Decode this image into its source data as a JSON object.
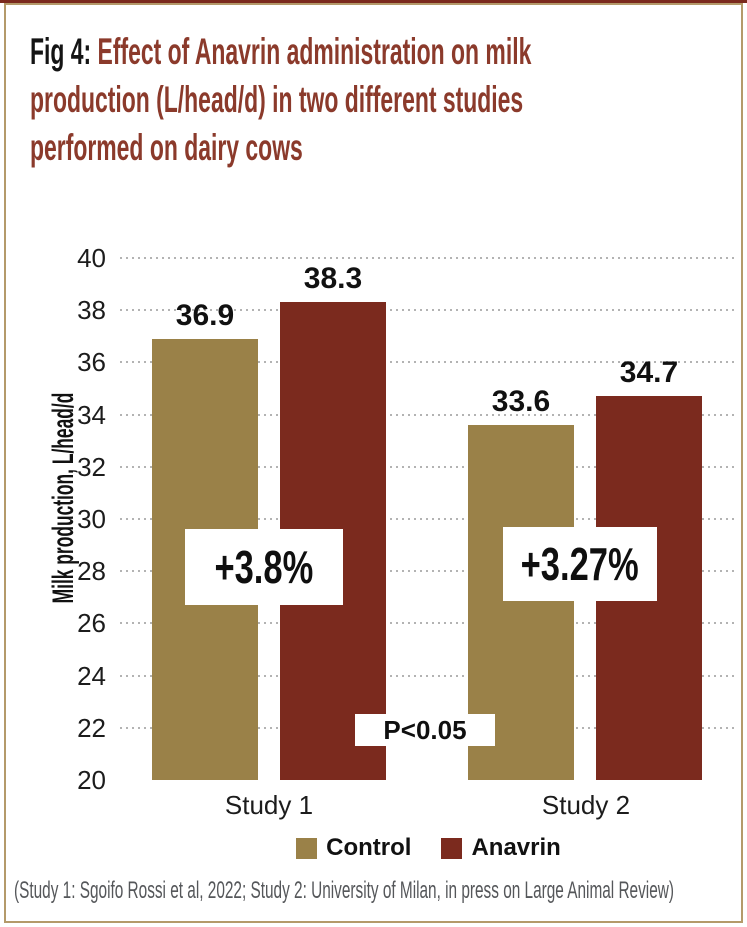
{
  "frame": {
    "accent_top_color": "#7b2a1e",
    "border_color": "#b49a6a",
    "background": "#ffffff"
  },
  "title": {
    "prefix": "Fig 4:",
    "prefix_color": "#141414",
    "color": "#8b3a2b",
    "line1": "Effect of Anavrin administration on milk",
    "line2": "production (L/head/d)  in two different studies",
    "line3": "performed on dairy cows"
  },
  "chart_data": {
    "type": "bar",
    "title": "Fig 4: Effect of Anavrin administration on milk production (L/head/d) in two different studies performed on dairy cows",
    "categories": [
      "Study 1",
      "Study 2"
    ],
    "series": [
      {
        "name": "Control",
        "color": "#9a8148",
        "values": [
          36.9,
          33.6
        ]
      },
      {
        "name": "Anavrin",
        "color": "#7b2a1e",
        "values": [
          38.3,
          34.7
        ]
      }
    ],
    "ylabel": "Milk production, L/head/d",
    "ylim": [
      20,
      40
    ],
    "yticks": [
      40,
      38,
      36,
      34,
      32,
      30,
      28,
      26,
      24,
      22,
      20
    ],
    "grid": "horizontal-dotted",
    "gridline_color": "#b3b3b3",
    "value_labels": true,
    "legend_position": "bottom-center",
    "annotations": [
      {
        "text": "+3.8%",
        "category": "Study 1",
        "style": "white-box"
      },
      {
        "text": "+3.27%",
        "category": "Study 2",
        "style": "white-box"
      },
      {
        "text": "P<0.05",
        "style": "plain"
      }
    ]
  },
  "footnote": {
    "text": "(Study 1: Sgoifo Rossi et al, 2022; Study 2: University of Milan, in press on Large Animal Review)",
    "color": "#55575a"
  }
}
